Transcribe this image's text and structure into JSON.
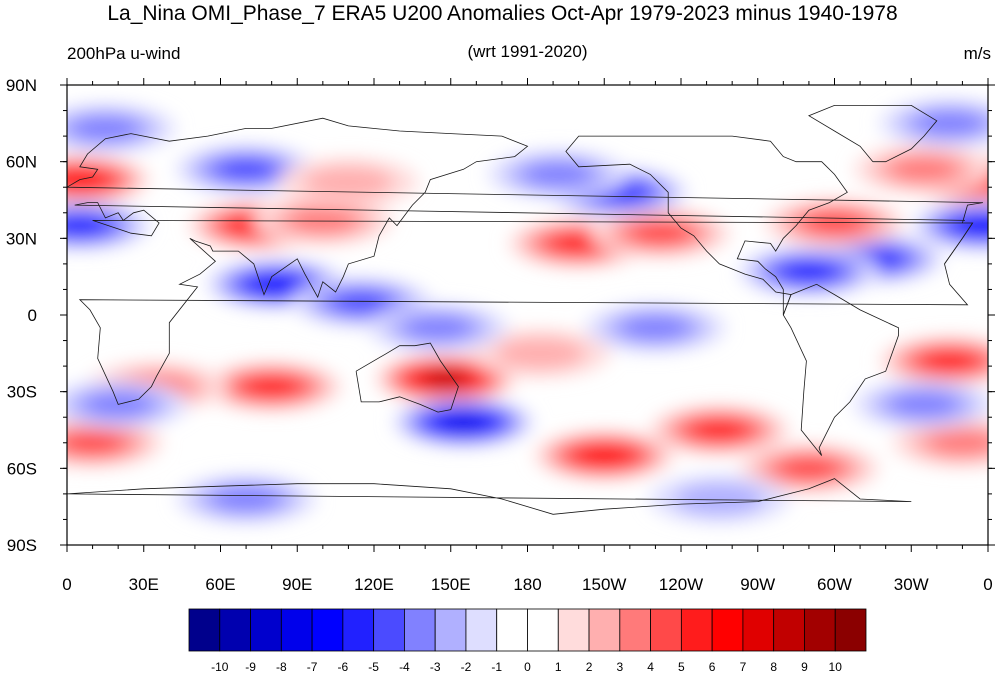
{
  "title": "La_Nina OMI_Phase_7 ERA5 U200 Anomalies Oct-Apr 1979-2023 minus 1940-1978",
  "left_subtitle": "200hPa u-wind",
  "center_subtitle": "(wrt 1991-2020)",
  "right_subtitle": "m/s",
  "map": {
    "projection": "cylindrical-equidistant",
    "lon_range": [
      0,
      360
    ],
    "lat_range": [
      -90,
      90
    ],
    "lat_ticks": [
      {
        "lat": 90,
        "label": "90N"
      },
      {
        "lat": 60,
        "label": "60N"
      },
      {
        "lat": 30,
        "label": "30N"
      },
      {
        "lat": 0,
        "label": "0"
      },
      {
        "lat": -30,
        "label": "30S"
      },
      {
        "lat": -60,
        "label": "60S"
      },
      {
        "lat": -90,
        "label": "90S"
      }
    ],
    "lon_ticks": [
      {
        "lon": 0,
        "label": "0"
      },
      {
        "lon": 30,
        "label": "30E"
      },
      {
        "lon": 60,
        "label": "60E"
      },
      {
        "lon": 90,
        "label": "90E"
      },
      {
        "lon": 120,
        "label": "120E"
      },
      {
        "lon": 150,
        "label": "150E"
      },
      {
        "lon": 180,
        "label": "180"
      },
      {
        "lon": 210,
        "label": "150W"
      },
      {
        "lon": 240,
        "label": "120W"
      },
      {
        "lon": 270,
        "label": "90W"
      },
      {
        "lon": 300,
        "label": "60W"
      },
      {
        "lon": 330,
        "label": "30W"
      },
      {
        "lon": 360,
        "label": "0"
      }
    ],
    "anomaly_features": [
      {
        "lon": 75,
        "lat": 35,
        "value": 6
      },
      {
        "lon": 100,
        "lat": 37,
        "value": 3
      },
      {
        "lon": 82,
        "lat": 12,
        "value": -6
      },
      {
        "lon": 115,
        "lat": 5,
        "value": -4
      },
      {
        "lon": 5,
        "lat": 53,
        "value": 6
      },
      {
        "lon": 355,
        "lat": 53,
        "value": 6
      },
      {
        "lon": 335,
        "lat": 57,
        "value": 3
      },
      {
        "lon": 358,
        "lat": 35,
        "value": -6
      },
      {
        "lon": 5,
        "lat": 35,
        "value": -5
      },
      {
        "lon": 315,
        "lat": 22,
        "value": -5
      },
      {
        "lon": 290,
        "lat": 17,
        "value": -5
      },
      {
        "lon": 300,
        "lat": 36,
        "value": 4
      },
      {
        "lon": 200,
        "lat": 28,
        "value": 5
      },
      {
        "lon": 232,
        "lat": 32,
        "value": 4
      },
      {
        "lon": 215,
        "lat": 48,
        "value": -5
      },
      {
        "lon": 192,
        "lat": 55,
        "value": -3
      },
      {
        "lon": 70,
        "lat": 57,
        "value": -4
      },
      {
        "lon": 110,
        "lat": 52,
        "value": 2
      },
      {
        "lon": 15,
        "lat": 73,
        "value": -3
      },
      {
        "lon": 345,
        "lat": 75,
        "value": -3
      },
      {
        "lon": 148,
        "lat": -25,
        "value": 8
      },
      {
        "lon": 80,
        "lat": -28,
        "value": 5
      },
      {
        "lon": 35,
        "lat": -28,
        "value": 3
      },
      {
        "lon": 155,
        "lat": -42,
        "value": -7
      },
      {
        "lon": 210,
        "lat": -55,
        "value": 6
      },
      {
        "lon": 255,
        "lat": -45,
        "value": 5
      },
      {
        "lon": 290,
        "lat": -60,
        "value": 4
      },
      {
        "lon": 350,
        "lat": -50,
        "value": 3
      },
      {
        "lon": 345,
        "lat": -18,
        "value": 5
      },
      {
        "lon": 335,
        "lat": -35,
        "value": -3
      },
      {
        "lon": 10,
        "lat": -50,
        "value": 4
      },
      {
        "lon": 20,
        "lat": -35,
        "value": -3
      },
      {
        "lon": 185,
        "lat": -15,
        "value": 2
      },
      {
        "lon": 230,
        "lat": -5,
        "value": -3
      },
      {
        "lon": 145,
        "lat": -5,
        "value": -3
      },
      {
        "lon": 70,
        "lat": -72,
        "value": -3
      },
      {
        "lon": 255,
        "lat": -72,
        "value": -2
      }
    ]
  },
  "colorbar": {
    "labels": [
      "-10",
      "-9",
      "-8",
      "-7",
      "-6",
      "-5",
      "-4",
      "-3",
      "-2",
      "-1",
      "0",
      "1",
      "2",
      "3",
      "4",
      "5",
      "6",
      "7",
      "8",
      "9",
      "10"
    ],
    "colors": [
      "#00008c",
      "#0000af",
      "#0000cd",
      "#0000eb",
      "#0000ff",
      "#2121ff",
      "#4b4bff",
      "#8181ff",
      "#b0b0ff",
      "#dedeff",
      "#ffffff",
      "#ffffff",
      "#ffdcdc",
      "#ffafaf",
      "#ff7a7a",
      "#ff4949",
      "#ff1c1c",
      "#ff0000",
      "#e00000",
      "#c10000",
      "#a20000",
      "#8b0000"
    ]
  }
}
